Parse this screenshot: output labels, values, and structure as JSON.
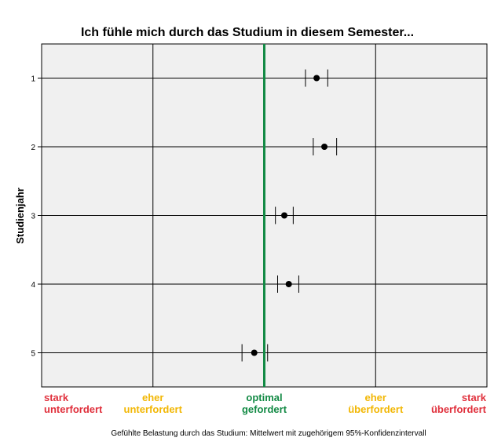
{
  "chart_data": {
    "type": "scatter",
    "title": "Ich fühle mich durch das Studium in diesem Semester...",
    "ylabel": "Studienjahr",
    "xlabel": "Gefühlte Belastung durch das Studium: Mittelwert mit zugehörigem 95%-Konfidenzintervall",
    "y_categories": [
      "1",
      "2",
      "3",
      "4",
      "5"
    ],
    "xlim": [
      1,
      5
    ],
    "grid": true,
    "x_scale_labels": [
      {
        "value": 1,
        "lines": [
          "stark",
          "unterfordert"
        ],
        "color": "#e0303c"
      },
      {
        "value": 2,
        "lines": [
          "eher",
          "unterfordert"
        ],
        "color": "#f2b705"
      },
      {
        "value": 3,
        "lines": [
          "optimal",
          "gefordert"
        ],
        "color": "#138a45"
      },
      {
        "value": 4,
        "lines": [
          "eher",
          "überfordert"
        ],
        "color": "#f2b705"
      },
      {
        "value": 5,
        "lines": [
          "stark",
          "überfordert"
        ],
        "color": "#e0303c"
      }
    ],
    "reference_line": {
      "x": 3,
      "color": "#138a45"
    },
    "points": [
      {
        "year": "1",
        "mean": 3.47,
        "ci": [
          3.37,
          3.57
        ]
      },
      {
        "year": "2",
        "mean": 3.54,
        "ci": [
          3.44,
          3.65
        ]
      },
      {
        "year": "3",
        "mean": 3.18,
        "ci": [
          3.1,
          3.26
        ]
      },
      {
        "year": "4",
        "mean": 3.22,
        "ci": [
          3.12,
          3.31
        ]
      },
      {
        "year": "5",
        "mean": 2.91,
        "ci": [
          2.8,
          3.03
        ]
      }
    ]
  }
}
